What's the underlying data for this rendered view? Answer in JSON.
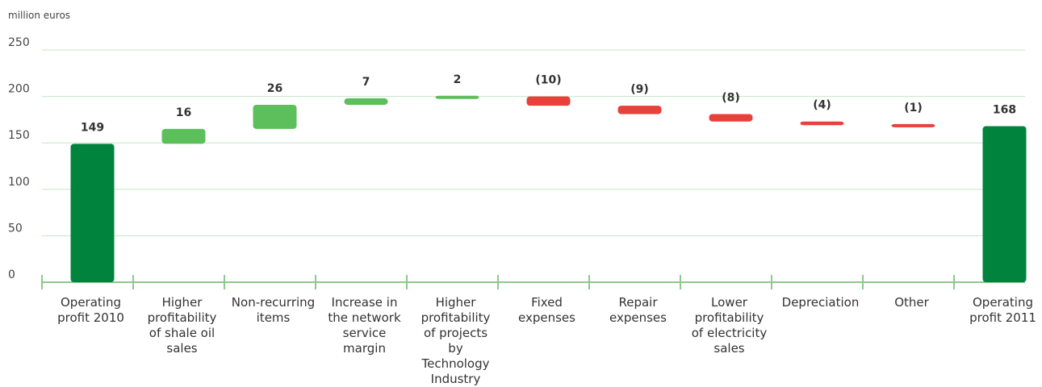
{
  "chart_data": {
    "type": "waterfall",
    "y_label": "million euros",
    "categories": [
      "Operating profit 2010",
      "Higher profitability of shale oil sales",
      "Non-recurring items",
      "Increase in the network service margin",
      "Higher profitability of projects by Technology Industry",
      "Fixed expenses",
      "Repair expenses",
      "Lower profitability of electricity sales",
      "Depreciation",
      "Other",
      "Operating profit 2011"
    ],
    "values": [
      149,
      16,
      26,
      7,
      2,
      -10,
      -9,
      -8,
      -4,
      -1,
      168
    ],
    "value_labels": [
      "149",
      "16",
      "26",
      "7",
      "2",
      "(10)",
      "(9)",
      "(8)",
      "(4)",
      "(1)",
      "168"
    ],
    "colors": {
      "total": "#00843d",
      "increase": "#5cbf5c",
      "decrease": "#e8403a"
    },
    "ylim": [
      0,
      250
    ],
    "yticks": [
      0,
      50,
      100,
      150,
      200,
      250
    ],
    "grid": true
  }
}
